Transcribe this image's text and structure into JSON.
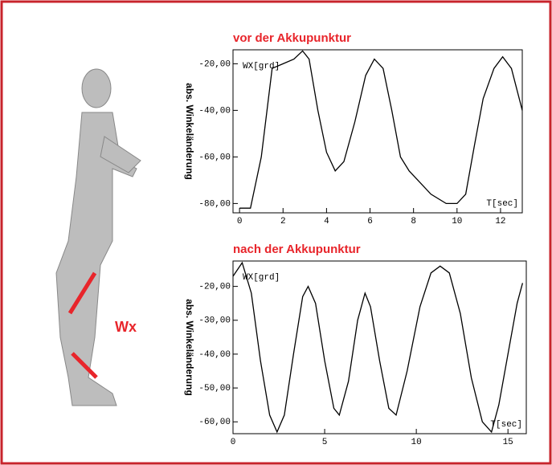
{
  "figure": {
    "label": "Wx"
  },
  "chart_data": [
    {
      "type": "line",
      "title": "vor der Akkupunktur",
      "y_label": "abs. Winkeländerung",
      "y_unit_label": "WX[grd]",
      "x_unit_label": "T[sec]",
      "xlim": [
        -0.3,
        13
      ],
      "xticks": [
        0,
        2,
        4,
        6,
        8,
        10,
        12
      ],
      "ylim": [
        -84,
        -14
      ],
      "yticks": [
        {
          "value": -20,
          "label": "-20,00"
        },
        {
          "value": -40,
          "label": "-40,00"
        },
        {
          "value": -60,
          "label": "-60,00"
        },
        {
          "value": -80,
          "label": "-80,00"
        }
      ],
      "series": [
        {
          "color": "#000000",
          "x": [
            0,
            0.5,
            1,
            1.5,
            2,
            2.5,
            2.9,
            3.2,
            3.6,
            4,
            4.4,
            4.8,
            5.3,
            5.8,
            6.2,
            6.6,
            7,
            7.4,
            7.8,
            8.2,
            8.8,
            9.5,
            10,
            10.4,
            10.8,
            11.2,
            11.7,
            12.1,
            12.5,
            13
          ],
          "values": [
            -82,
            -82,
            -60,
            -22,
            -20,
            -18,
            -14.5,
            -18,
            -40,
            -58,
            -66,
            -62,
            -45,
            -25,
            -18,
            -22,
            -40,
            -60,
            -66,
            -70,
            -76,
            -80,
            -80,
            -76,
            -55,
            -35,
            -22,
            -17,
            -22,
            -40
          ]
        }
      ]
    },
    {
      "type": "line",
      "title": "nach der Akkupunktur",
      "y_label": "abs. Winkeländerung",
      "y_unit_label": "WX[grd]",
      "x_unit_label": "T[sec]",
      "xlim": [
        0,
        16
      ],
      "xticks": [
        0,
        5,
        10,
        15
      ],
      "ylim": [
        -63.5,
        -12.5
      ],
      "yticks": [
        {
          "value": -20,
          "label": "-20,00"
        },
        {
          "value": -30,
          "label": "-30,00"
        },
        {
          "value": -40,
          "label": "-40,00"
        },
        {
          "value": -50,
          "label": "-50,00"
        },
        {
          "value": -60,
          "label": "-60,00"
        }
      ],
      "series": [
        {
          "color": "#000000",
          "x": [
            0,
            0.5,
            1,
            1.5,
            2,
            2.4,
            2.8,
            3.3,
            3.8,
            4.1,
            4.5,
            5,
            5.5,
            5.8,
            6.3,
            6.8,
            7.2,
            7.5,
            8,
            8.5,
            8.9,
            9.5,
            10.2,
            10.8,
            11.3,
            11.8,
            12.4,
            13,
            13.6,
            14.1,
            14.5,
            15,
            15.5,
            15.8
          ],
          "values": [
            -17,
            -13,
            -22,
            -42,
            -58,
            -63,
            -58,
            -40,
            -23,
            -20,
            -25,
            -42,
            -56,
            -58,
            -48,
            -30,
            -22,
            -26,
            -42,
            -56,
            -58,
            -45,
            -26,
            -16,
            -14,
            -16,
            -28,
            -47,
            -60,
            -63,
            -55,
            -40,
            -25,
            -19
          ]
        }
      ]
    }
  ]
}
